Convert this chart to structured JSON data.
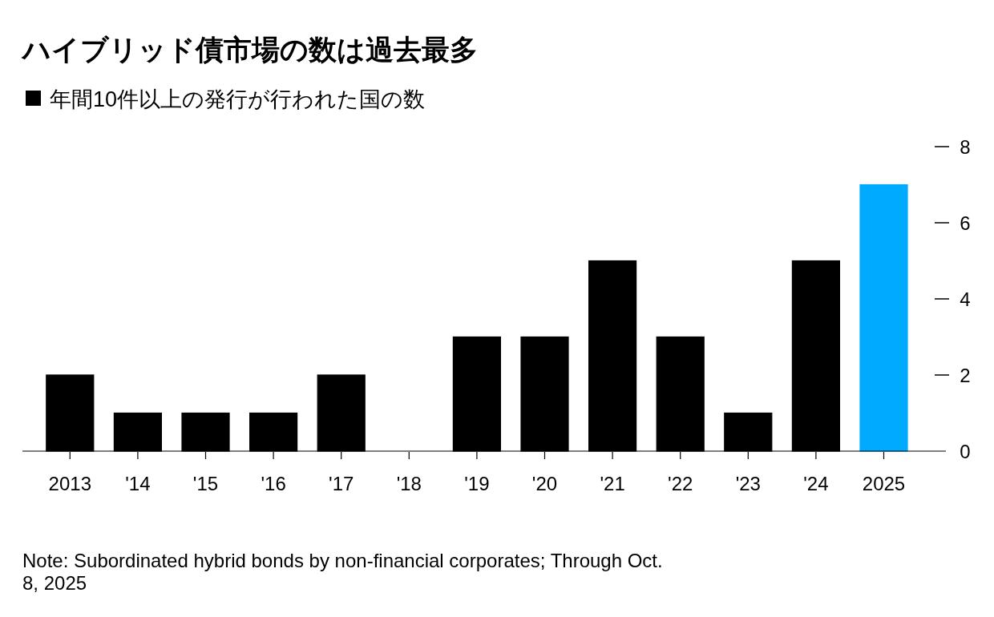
{
  "chart_data": {
    "type": "bar",
    "title": "ハイブリッド債市場の数は過去最多",
    "categories": [
      "2013",
      "'14",
      "'15",
      "'16",
      "'17",
      "'18",
      "'19",
      "'20",
      "'21",
      "'22",
      "'23",
      "'24",
      "2025"
    ],
    "series": [
      {
        "name": "年間10件以上の発行が行われた国の数",
        "color": "#000000",
        "colors": [
          "#000000",
          "#000000",
          "#000000",
          "#000000",
          "#000000",
          "#000000",
          "#000000",
          "#000000",
          "#000000",
          "#000000",
          "#000000",
          "#000000",
          "#00aaff"
        ],
        "values": [
          2,
          1,
          1,
          1,
          2,
          0,
          3,
          3,
          5,
          3,
          1,
          5,
          7
        ]
      }
    ],
    "ylim": [
      0,
      8
    ],
    "yticks": [
      0,
      2,
      4,
      6,
      8
    ],
    "legend": "top left",
    "annotations": [
      "Note: Subordinated hybrid bonds by non-financial corporates; Through Oct. 8, 2025"
    ]
  }
}
